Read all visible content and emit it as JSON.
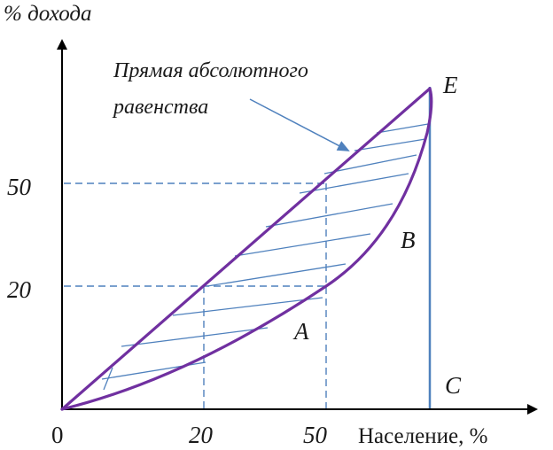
{
  "title": "",
  "axes": {
    "y_label": "% дохода",
    "x_label": "Население, %",
    "origin_label": "0",
    "x_ticks": [
      "20",
      "50"
    ],
    "y_ticks": [
      "50",
      "20"
    ]
  },
  "points": {
    "A": "A",
    "B": "B",
    "C": "C",
    "E": "E"
  },
  "annotation": {
    "line1": "Прямая абсолютного",
    "line2": "равенства"
  },
  "colors": {
    "curve": "#7030a0",
    "hatch": "#4f81bd",
    "guide": "#4f81bd",
    "axis": "#000000"
  }
}
